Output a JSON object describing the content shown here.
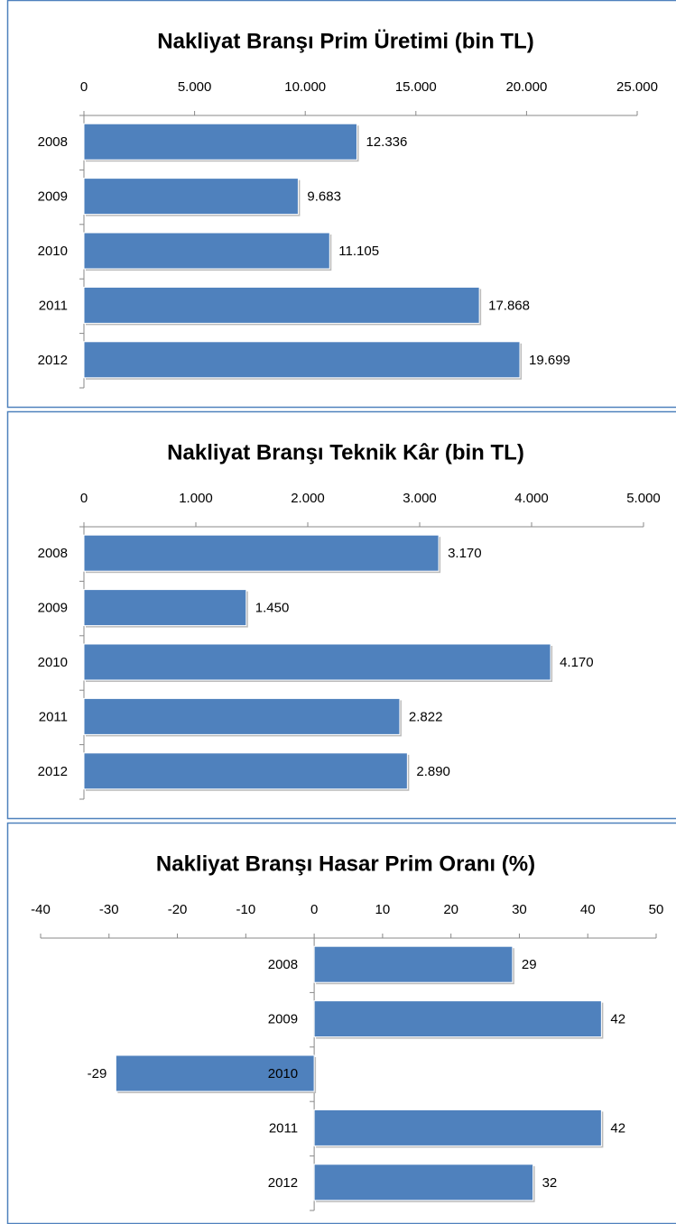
{
  "chart_data": [
    {
      "type": "bar",
      "orientation": "horizontal",
      "title": "Nakliyat Branşı  Prim Üretimi (bin TL)",
      "categories": [
        "2008",
        "2009",
        "2010",
        "2011",
        "2012"
      ],
      "values": [
        12336,
        9683,
        11105,
        17868,
        19699
      ],
      "value_labels": [
        "12.336",
        "9.683",
        "11.105",
        "17.868",
        "19.699"
      ],
      "color": "#4f81bd",
      "xlim": [
        0,
        25000
      ],
      "xticks": [
        0,
        {
          "value": 5000,
          "label": "5.000"
        },
        {
          "value": 10000,
          "label": "10.000"
        },
        {
          "value": 15000,
          "label": "15.000"
        },
        {
          "value": 20000,
          "label": "20.000"
        },
        {
          "value": 25000,
          "label": "25.000"
        }
      ]
    },
    {
      "type": "bar",
      "orientation": "horizontal",
      "title": "Nakliyat Branşı Teknik Kâr (bin TL)",
      "categories": [
        "2008",
        "2009",
        "2010",
        "2011",
        "2012"
      ],
      "values": [
        3170,
        1450,
        4170,
        2822,
        2890
      ],
      "value_labels": [
        "3.170",
        "1.450",
        "4.170",
        "2.822",
        "2.890"
      ],
      "color": "#4f81bd",
      "xlim": [
        0,
        5000
      ],
      "xticks": [
        0,
        {
          "value": 1000,
          "label": "1.000"
        },
        {
          "value": 2000,
          "label": "2.000"
        },
        {
          "value": 3000,
          "label": "3.000"
        },
        {
          "value": 4000,
          "label": "4.000"
        },
        {
          "value": 5000,
          "label": "5.000"
        }
      ]
    },
    {
      "type": "bar",
      "orientation": "horizontal",
      "title": "Nakliyat Branşı Hasar Prim Oranı (%)",
      "categories": [
        "2008",
        "2009",
        "2010",
        "2011",
        "2012"
      ],
      "values": [
        29,
        42,
        -29,
        42,
        32
      ],
      "color": "#4f81bd",
      "xlim": [
        -40,
        50
      ],
      "xticks": [
        -40,
        -30,
        -20,
        -10,
        0,
        10,
        20,
        30,
        40,
        50
      ]
    }
  ]
}
